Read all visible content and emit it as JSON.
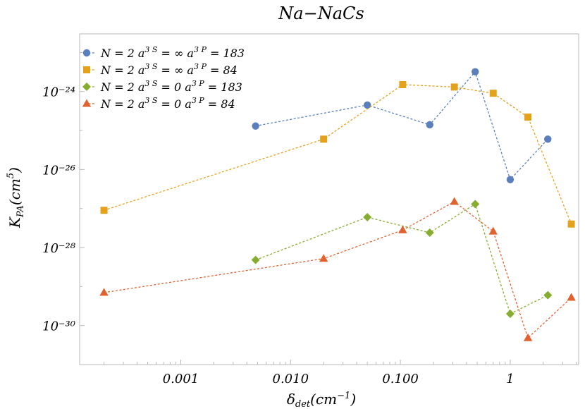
{
  "chart_data": {
    "type": "line",
    "title": "Na−NaCs",
    "xlabel": "δdet(cm⁻¹)",
    "ylabel": "KPA(cm5)",
    "x_scale": "log",
    "y_scale": "log",
    "xlim": [
      0.00012,
      4.2
    ],
    "ylim": [
      1e-31,
      3e-23
    ],
    "x_ticks": [
      {
        "value": 0.001,
        "label": "0.001"
      },
      {
        "value": 0.01,
        "label": "0.010"
      },
      {
        "value": 0.1,
        "label": "0.100"
      },
      {
        "value": 1,
        "label": "1"
      }
    ],
    "y_ticks": [
      {
        "value": 1e-30,
        "label": "10⁻³⁰"
      },
      {
        "value": 1e-28,
        "label": "10⁻²⁸"
      },
      {
        "value": 1e-26,
        "label": "10⁻²⁶"
      },
      {
        "value": 1e-24,
        "label": "10⁻²⁴"
      }
    ],
    "legend_position": "top-left",
    "series": [
      {
        "name": "N = 2 a3S = ∞ a3P = 183",
        "color": "#5b7fbd",
        "marker": "circle",
        "points": [
          [
            0.0048,
            1.3e-25
          ],
          [
            0.05,
            4.5e-25
          ],
          [
            0.185,
            1.4e-25
          ],
          [
            0.48,
            3.2e-24
          ],
          [
            1.0,
            5.5e-27
          ],
          [
            2.2,
            6e-26
          ]
        ]
      },
      {
        "name": "N = 2 a3S = ∞ a3P = 84",
        "color": "#e4a11b",
        "marker": "square",
        "points": [
          [
            0.0002,
            9e-28
          ],
          [
            0.02,
            6e-26
          ],
          [
            0.105,
            1.5e-24
          ],
          [
            0.31,
            1.3e-24
          ],
          [
            0.7,
            9e-25
          ],
          [
            1.45,
            2.2e-25
          ],
          [
            3.6,
            4e-28
          ]
        ]
      },
      {
        "name": "N = 2 a3S = 0 a3P = 183",
        "color": "#86ad2f",
        "marker": "diamond",
        "points": [
          [
            0.0048,
            4.8e-29
          ],
          [
            0.05,
            6e-28
          ],
          [
            0.185,
            2.4e-28
          ],
          [
            0.48,
            1.3e-27
          ],
          [
            1.0,
            2e-30
          ],
          [
            2.2,
            6e-30
          ]
        ]
      },
      {
        "name": "N = 2 a3S = 0 a3P = 84",
        "color": "#e2622f",
        "marker": "triangle",
        "points": [
          [
            0.0002,
            7e-30
          ],
          [
            0.02,
            5.2e-29
          ],
          [
            0.105,
            2.8e-28
          ],
          [
            0.31,
            1.5e-27
          ],
          [
            0.7,
            2.6e-28
          ],
          [
            1.45,
            4.8e-31
          ],
          [
            3.6,
            5.2e-30
          ]
        ]
      }
    ]
  }
}
